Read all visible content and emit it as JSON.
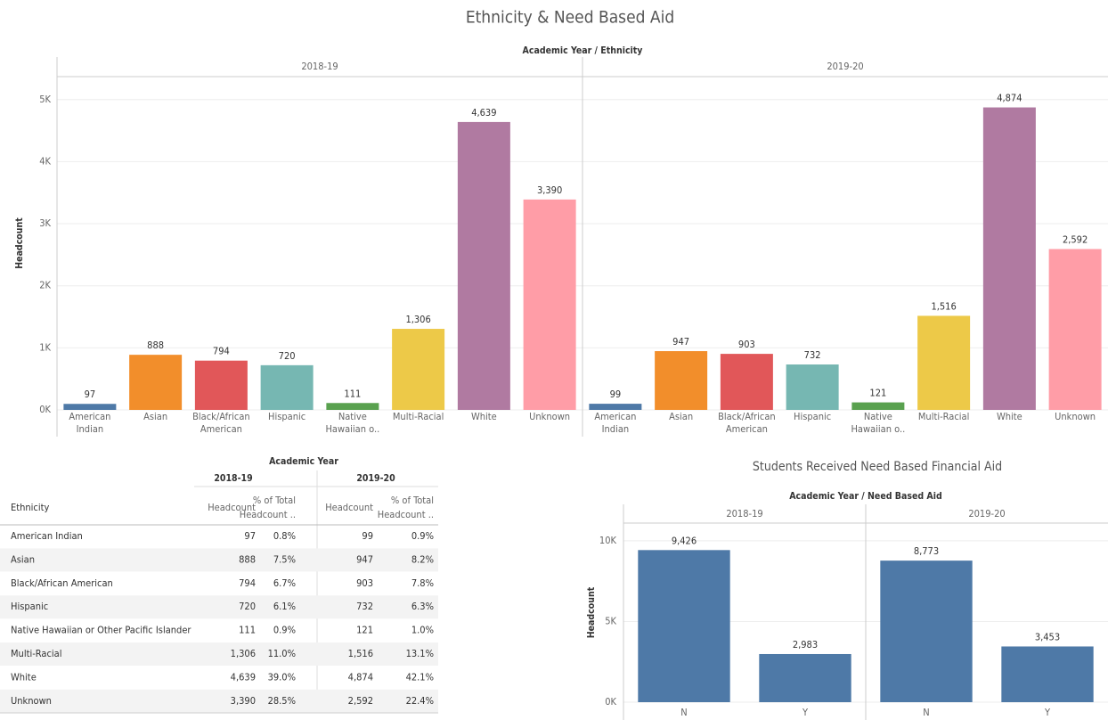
{
  "title": "Ethnicity & Need Based Aid",
  "chart_data": [
    {
      "type": "bar",
      "header": "Academic Year / Ethnicity",
      "ylabel": "Headcount",
      "categories": [
        "American Indian",
        "Asian",
        "Black/African American",
        "Hispanic",
        "Native Hawaiian o..",
        "Multi-Racial",
        "White",
        "Unknown"
      ],
      "colors": [
        "#4e79a7",
        "#f28e2b",
        "#e15759",
        "#76b7b2",
        "#59a14f",
        "#edc948",
        "#b07aa1",
        "#ff9da7"
      ],
      "panels": [
        {
          "name": "2018-19",
          "values": [
            97,
            888,
            794,
            720,
            111,
            1306,
            4639,
            3390
          ],
          "value_labels": [
            "97",
            "888",
            "794",
            "720",
            "111",
            "1,306",
            "4,639",
            "3,390"
          ]
        },
        {
          "name": "2019-20",
          "values": [
            99,
            947,
            903,
            732,
            121,
            1516,
            4874,
            2592
          ],
          "value_labels": [
            "99",
            "947",
            "903",
            "732",
            "121",
            "1,516",
            "4,874",
            "2,592"
          ]
        }
      ],
      "ylim": [
        0,
        5370
      ],
      "yticks": [
        {
          "value": 0,
          "label": "0K"
        },
        {
          "value": 1000,
          "label": "1K"
        },
        {
          "value": 2000,
          "label": "2K"
        },
        {
          "value": 3000,
          "label": "3K"
        },
        {
          "value": 4000,
          "label": "4K"
        },
        {
          "value": 5000,
          "label": "5K"
        }
      ],
      "grid": true
    },
    {
      "type": "bar",
      "title": "Students Received Need Based Financial Aid",
      "header": "Academic Year / Need Based Aid",
      "ylabel": "Headcount",
      "categories": [
        "N",
        "Y"
      ],
      "color": "#4e79a7",
      "panels": [
        {
          "name": "2018-19",
          "values": [
            9426,
            2983
          ],
          "value_labels": [
            "9,426",
            "2,983"
          ]
        },
        {
          "name": "2019-20",
          "values": [
            8773,
            3453
          ],
          "value_labels": [
            "8,773",
            "3,453"
          ]
        }
      ],
      "ylim": [
        0,
        11100
      ],
      "yticks": [
        {
          "value": 0,
          "label": "0K"
        },
        {
          "value": 5000,
          "label": "5K"
        },
        {
          "value": 10000,
          "label": "10K"
        }
      ],
      "grid": true
    }
  ],
  "table": {
    "header": "Academic Year",
    "years": [
      "2018-19",
      "2019-20"
    ],
    "first_column": "Ethnicity",
    "columns": [
      "Headcount",
      "% of Total Headcount .."
    ],
    "rows": [
      [
        "American Indian",
        "97",
        "0.8%",
        "99",
        "0.9%"
      ],
      [
        "Asian",
        "888",
        "7.5%",
        "947",
        "8.2%"
      ],
      [
        "Black/African American",
        "794",
        "6.7%",
        "903",
        "7.8%"
      ],
      [
        "Hispanic",
        "720",
        "6.1%",
        "732",
        "6.3%"
      ],
      [
        "Native Hawaiian or Other Pacific Islander",
        "111",
        "0.9%",
        "121",
        "1.0%"
      ],
      [
        "Multi-Racial",
        "1,306",
        "11.0%",
        "1,516",
        "13.1%"
      ],
      [
        "White",
        "4,639",
        "39.0%",
        "4,874",
        "42.1%"
      ],
      [
        "Unknown",
        "3,390",
        "28.5%",
        "2,592",
        "22.4%"
      ]
    ]
  }
}
